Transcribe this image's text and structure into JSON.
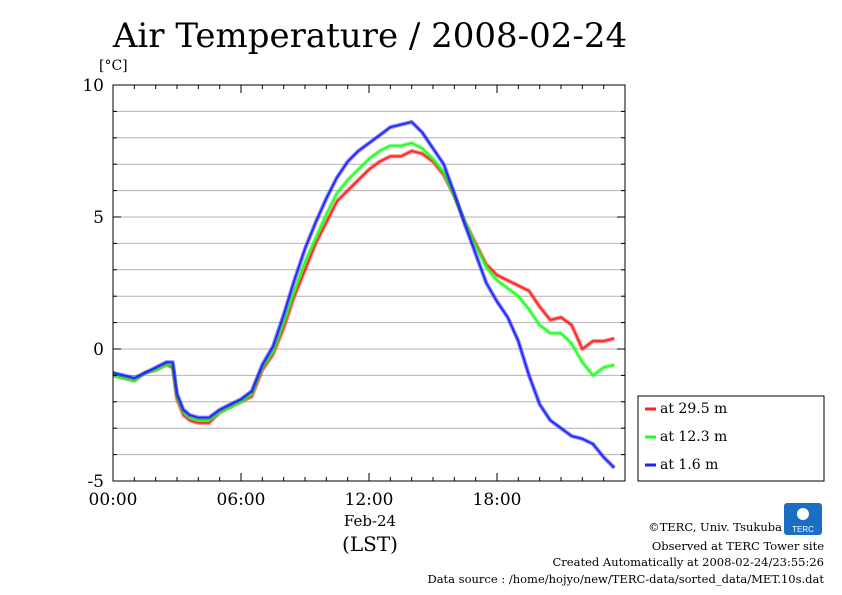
{
  "chart_data": {
    "type": "line",
    "title": "Air Temperature / 2008-02-24",
    "ylabel": "[°C]",
    "xlabel": "(LST)",
    "x_date_label": "Feb-24",
    "ylim": [
      -5,
      10
    ],
    "xlim": [
      0,
      24
    ],
    "y_ticks": [
      "10",
      "5",
      "0",
      "-5"
    ],
    "x_ticks": [
      "00:00",
      "06:00",
      "12:00",
      "18:00"
    ],
    "grid": true,
    "legend_position": "bottom-right outside",
    "series": [
      {
        "name": "at 29.5 m",
        "color": "#ff2020",
        "x": [
          0,
          0.5,
          1.0,
          1.5,
          2.0,
          2.5,
          2.8,
          3.0,
          3.3,
          3.6,
          4.0,
          4.5,
          5.0,
          5.5,
          6.0,
          6.5,
          7.0,
          7.5,
          8.0,
          8.5,
          9.0,
          9.5,
          10.0,
          10.5,
          11.0,
          11.5,
          12.0,
          12.5,
          13.0,
          13.5,
          14.0,
          14.5,
          15.0,
          15.5,
          16.0,
          16.5,
          17.0,
          17.5,
          18.0,
          18.5,
          19.0,
          19.5,
          20.0,
          20.5,
          21.0,
          21.5,
          22.0,
          22.5,
          23.0,
          23.5
        ],
        "values": [
          -1.0,
          -1.1,
          -1.2,
          -0.9,
          -0.8,
          -0.6,
          -0.7,
          -1.9,
          -2.5,
          -2.7,
          -2.8,
          -2.8,
          -2.4,
          -2.2,
          -2.0,
          -1.8,
          -0.8,
          -0.2,
          0.8,
          2.0,
          3.0,
          4.0,
          4.8,
          5.6,
          6.0,
          6.4,
          6.8,
          7.1,
          7.3,
          7.3,
          7.5,
          7.4,
          7.1,
          6.6,
          5.8,
          4.8,
          4.0,
          3.2,
          2.8,
          2.6,
          2.4,
          2.2,
          1.6,
          1.1,
          1.2,
          0.9,
          0.0,
          0.3,
          0.3,
          0.4
        ]
      },
      {
        "name": "at 12.3 m",
        "color": "#20ff20",
        "x": [
          0,
          0.5,
          1.0,
          1.5,
          2.0,
          2.5,
          2.8,
          3.0,
          3.3,
          3.6,
          4.0,
          4.5,
          5.0,
          5.5,
          6.0,
          6.5,
          7.0,
          7.5,
          8.0,
          8.5,
          9.0,
          9.5,
          10.0,
          10.5,
          11.0,
          11.5,
          12.0,
          12.5,
          13.0,
          13.5,
          14.0,
          14.5,
          15.0,
          15.5,
          16.0,
          16.5,
          17.0,
          17.5,
          18.0,
          18.5,
          19.0,
          19.5,
          20.0,
          20.5,
          21.0,
          21.5,
          22.0,
          22.5,
          23.0,
          23.5
        ],
        "values": [
          -1.0,
          -1.1,
          -1.2,
          -0.9,
          -0.8,
          -0.6,
          -0.6,
          -1.8,
          -2.4,
          -2.6,
          -2.7,
          -2.7,
          -2.4,
          -2.2,
          -2.0,
          -1.7,
          -0.7,
          -0.1,
          1.0,
          2.2,
          3.3,
          4.2,
          5.1,
          5.9,
          6.4,
          6.8,
          7.2,
          7.5,
          7.7,
          7.7,
          7.8,
          7.6,
          7.2,
          6.7,
          5.8,
          4.8,
          3.9,
          3.1,
          2.6,
          2.3,
          2.0,
          1.5,
          0.9,
          0.6,
          0.6,
          0.2,
          -0.5,
          -1.0,
          -0.7,
          -0.6
        ]
      },
      {
        "name": "at 1.6 m",
        "color": "#2020ff",
        "x": [
          0,
          0.5,
          1.0,
          1.5,
          2.0,
          2.5,
          2.8,
          3.0,
          3.3,
          3.6,
          4.0,
          4.5,
          5.0,
          5.5,
          6.0,
          6.5,
          7.0,
          7.5,
          8.0,
          8.5,
          9.0,
          9.5,
          10.0,
          10.5,
          11.0,
          11.5,
          12.0,
          12.5,
          13.0,
          13.5,
          14.0,
          14.5,
          15.0,
          15.5,
          16.0,
          16.5,
          17.0,
          17.5,
          18.0,
          18.5,
          19.0,
          19.5,
          20.0,
          20.5,
          21.0,
          21.5,
          22.0,
          22.5,
          23.0,
          23.5
        ],
        "values": [
          -0.9,
          -1.0,
          -1.1,
          -0.9,
          -0.7,
          -0.5,
          -0.5,
          -1.7,
          -2.3,
          -2.5,
          -2.6,
          -2.6,
          -2.3,
          -2.1,
          -1.9,
          -1.6,
          -0.6,
          0.1,
          1.3,
          2.6,
          3.8,
          4.8,
          5.7,
          6.5,
          7.1,
          7.5,
          7.8,
          8.1,
          8.4,
          8.5,
          8.6,
          8.2,
          7.6,
          7.0,
          5.9,
          4.7,
          3.6,
          2.5,
          1.8,
          1.2,
          0.3,
          -1.0,
          -2.1,
          -2.7,
          -3.0,
          -3.3,
          -3.4,
          -3.6,
          -4.1,
          -4.5
        ]
      }
    ]
  },
  "footer": {
    "copyright": "©TERC, Univ. Tsukuba",
    "observed": "Observed at TERC Tower site",
    "created": "Created Automatically at 2008-02-24/23:55:26",
    "source": "Data source : /home/hojyo/new/TERC-data/sorted_data/MET.10s.dat"
  },
  "logo": {
    "text": "TERC",
    "color": "#1a6fc4"
  }
}
